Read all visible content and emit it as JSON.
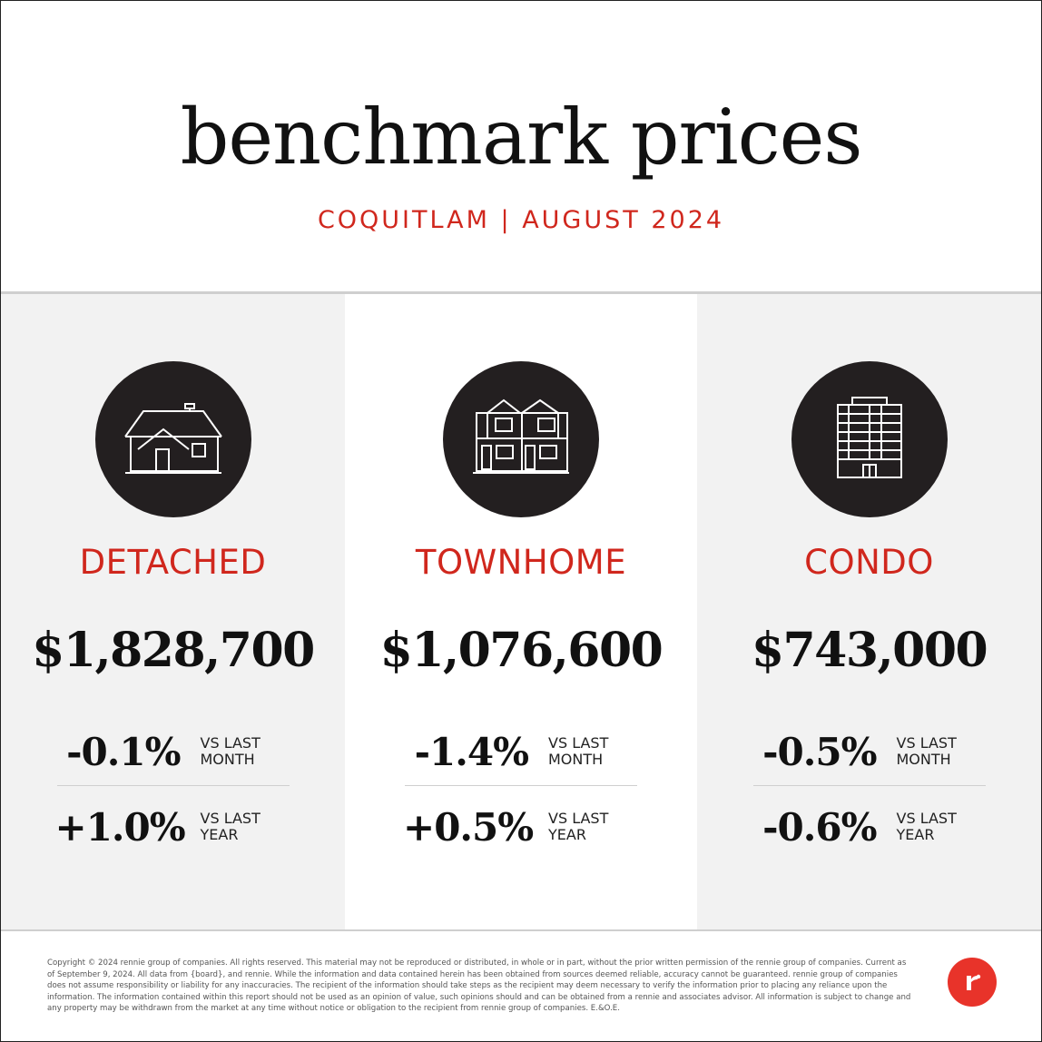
{
  "header": {
    "title": "benchmark prices",
    "subtitle": "COQUITLAM | AUGUST 2024"
  },
  "columns": [
    {
      "type": "DETACHED",
      "icon": "detached-house-icon",
      "price": "$1,828,700",
      "month_change": "-0.1%",
      "month_label_1": "VS LAST",
      "month_label_2": "MONTH",
      "year_change": "+1.0%",
      "year_label_1": "VS LAST",
      "year_label_2": "YEAR"
    },
    {
      "type": "TOWNHOME",
      "icon": "townhome-icon",
      "price": "$1,076,600",
      "month_change": "-1.4%",
      "month_label_1": "VS LAST",
      "month_label_2": "MONTH",
      "year_change": "+0.5%",
      "year_label_1": "VS LAST",
      "year_label_2": "YEAR"
    },
    {
      "type": "CONDO",
      "icon": "condo-building-icon",
      "price": "$743,000",
      "month_change": "-0.5%",
      "month_label_1": "VS LAST",
      "month_label_2": "MONTH",
      "year_change": "-0.6%",
      "year_label_1": "VS LAST",
      "year_label_2": "YEAR"
    }
  ],
  "footer": {
    "disclaimer": "Copyright © 2024 rennie group of companies. All rights reserved. This material may not be reproduced or distributed, in whole or in part, without the prior written permission of the rennie group of companies. Current as of September 9, 2024. All data from {board}, and rennie. While the information and data contained herein has been obtained from sources deemed reliable, accuracy cannot be guaranteed. rennie group of companies does not assume responsibility or liability for any inaccuracies. The recipient of the information should take steps as the recipient may deem necessary to verify the information prior to placing any reliance upon the information. The information contained within this report should not be used as an opinion of value, such opinions should and can be obtained from a rennie and associates advisor. All information is subject to change and any property may be withdrawn from the market at any time without notice or obligation to the recipient from rennie group of companies. E.&O.E.",
    "logo": "rennie-logo",
    "colors": {
      "brand_red": "#e8332a",
      "accent_red": "#d0271d",
      "icon_bg": "#231f20"
    }
  }
}
